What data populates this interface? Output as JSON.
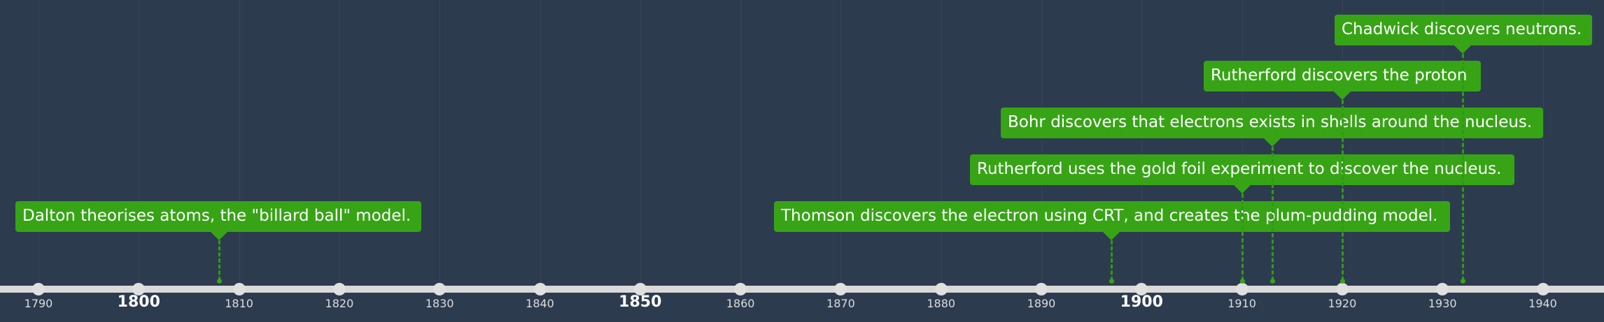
{
  "chart_data": {
    "type": "timeline",
    "x_range": [
      1786,
      1946
    ],
    "ticks": [
      {
        "label": "1790",
        "value": 1790,
        "major": false
      },
      {
        "label": "1800",
        "value": 1800,
        "major": true
      },
      {
        "label": "1810",
        "value": 1810,
        "major": false
      },
      {
        "label": "1820",
        "value": 1820,
        "major": false
      },
      {
        "label": "1830",
        "value": 1830,
        "major": false
      },
      {
        "label": "1840",
        "value": 1840,
        "major": false
      },
      {
        "label": "1850",
        "value": 1850,
        "major": true
      },
      {
        "label": "1860",
        "value": 1860,
        "major": false
      },
      {
        "label": "1870",
        "value": 1870,
        "major": false
      },
      {
        "label": "1880",
        "value": 1880,
        "major": false
      },
      {
        "label": "1890",
        "value": 1890,
        "major": false
      },
      {
        "label": "1900",
        "value": 1900,
        "major": true
      },
      {
        "label": "1910",
        "value": 1910,
        "major": false
      },
      {
        "label": "1920",
        "value": 1920,
        "major": false
      },
      {
        "label": "1930",
        "value": 1930,
        "major": false
      },
      {
        "label": "1940",
        "value": 1940,
        "major": false
      }
    ],
    "events": [
      {
        "year": 1808,
        "text": "Dalton theorises atoms, the \"billard ball\" model."
      },
      {
        "year": 1897,
        "text": "Thomson discovers the electron using CRT, and creates the plum-pudding model."
      },
      {
        "year": 1910,
        "text": "Rutherford uses the gold foil experiment to discover the nucleus."
      },
      {
        "year": 1913,
        "text": "Bohr discovers that electrons exists in shells around the nucleus."
      },
      {
        "year": 1920,
        "text": "Rutherford discovers the proton"
      },
      {
        "year": 1932,
        "text": "Chadwick discovers neutrons."
      }
    ]
  },
  "colors": {
    "background": "#2d3b4f",
    "event_fill": "#37a416",
    "axis": "#d9d9d9"
  }
}
